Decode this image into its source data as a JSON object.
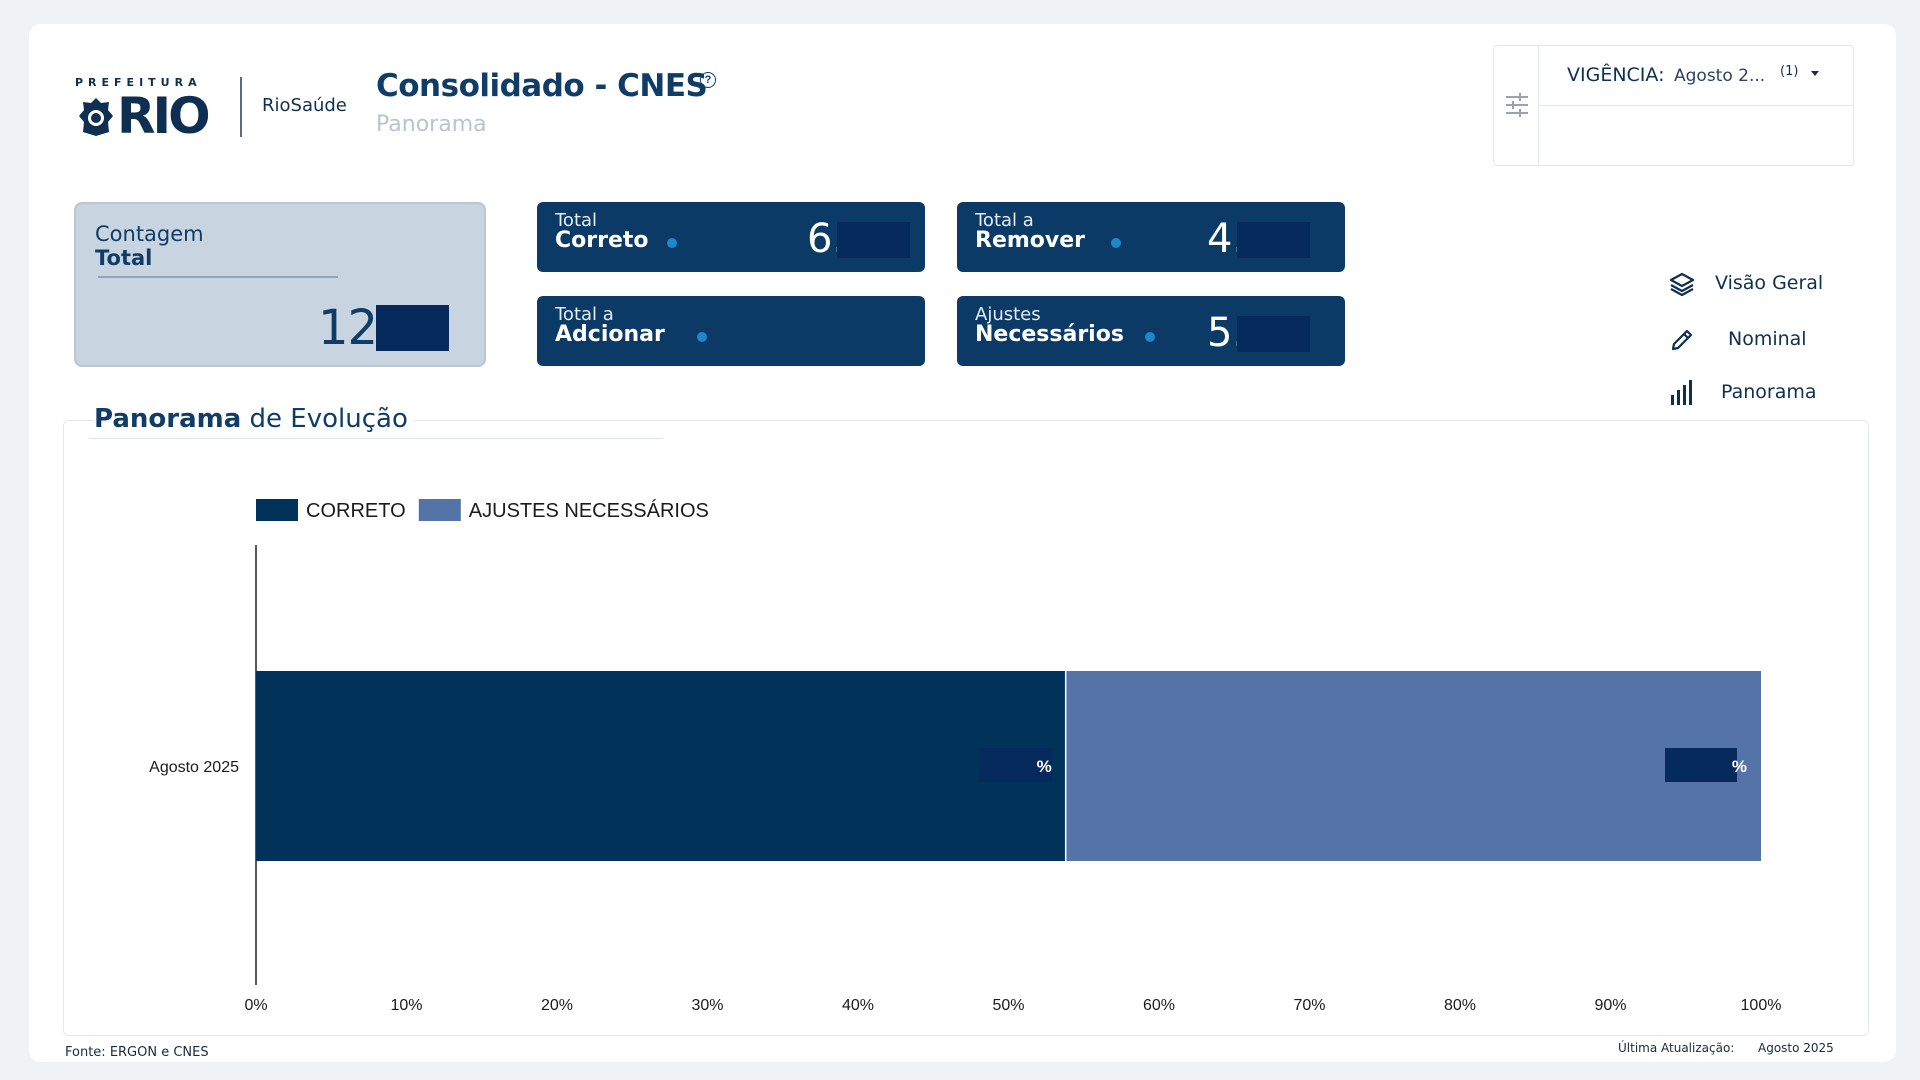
{
  "header": {
    "logo_prefeitura": "PREFEITURA",
    "logo_rio": "RIO",
    "logo_riosaude": "RioSaúde",
    "title": "Consolidado - CNES",
    "help_icon": "question-circle-icon",
    "subtitle": "Panorama"
  },
  "filter": {
    "icon": "sliders-icon",
    "vigencia_label": "VIGÊNCIA:",
    "vigencia_value": "Agosto 2...",
    "vigencia_count": "(1)"
  },
  "kpis": {
    "total": {
      "line1": "Contagem",
      "line2": "Total",
      "value_prefix": "12."
    },
    "correto": {
      "small": "Total",
      "bold": "Correto",
      "value_prefix": "6."
    },
    "remover": {
      "small": "Total a",
      "bold": "Remover",
      "value_prefix": "4."
    },
    "adcionar": {
      "small": "Total a",
      "bold": "Adcionar",
      "value_prefix": ""
    },
    "ajustes": {
      "small": "Ajustes",
      "bold": "Necessários",
      "value_prefix": "5."
    }
  },
  "nav": {
    "items": [
      {
        "label": "Visão Geral",
        "icon": "layers-icon"
      },
      {
        "label": "Nominal",
        "icon": "pencil-icon"
      },
      {
        "label": "Panorama",
        "icon": "bar-chart-icon"
      }
    ]
  },
  "chart_section": {
    "title_bold": "Panorama",
    "title_rest": "de Evolução"
  },
  "chart_data": {
    "type": "bar",
    "orientation": "horizontal",
    "stacked": true,
    "categories": [
      "Agosto 2025"
    ],
    "series": [
      {
        "name": "CORRETO",
        "values": [
          53.8
        ],
        "color": "#00325a",
        "data_label_suffix": "%"
      },
      {
        "name": "AJUSTES NECESSÁRIOS",
        "values": [
          46.2
        ],
        "color": "#5474a8",
        "data_label_suffix": "%"
      }
    ],
    "xlim": [
      0,
      100
    ],
    "x_ticks": [
      "0%",
      "10%",
      "20%",
      "30%",
      "40%",
      "50%",
      "60%",
      "70%",
      "80%",
      "90%",
      "100%"
    ],
    "legend_position": "top-left",
    "grid": false
  },
  "footer": {
    "fonte": "Fonte: ERGON e CNES",
    "ultima_label": "Última Atualização:",
    "ultima_value": "Agosto 2025"
  },
  "colors": {
    "brand_navy": "#0c3a66",
    "mask": "#062a5c",
    "accent_dot": "#1e88c9",
    "kpi_total_bg": "#c8d4e0"
  }
}
